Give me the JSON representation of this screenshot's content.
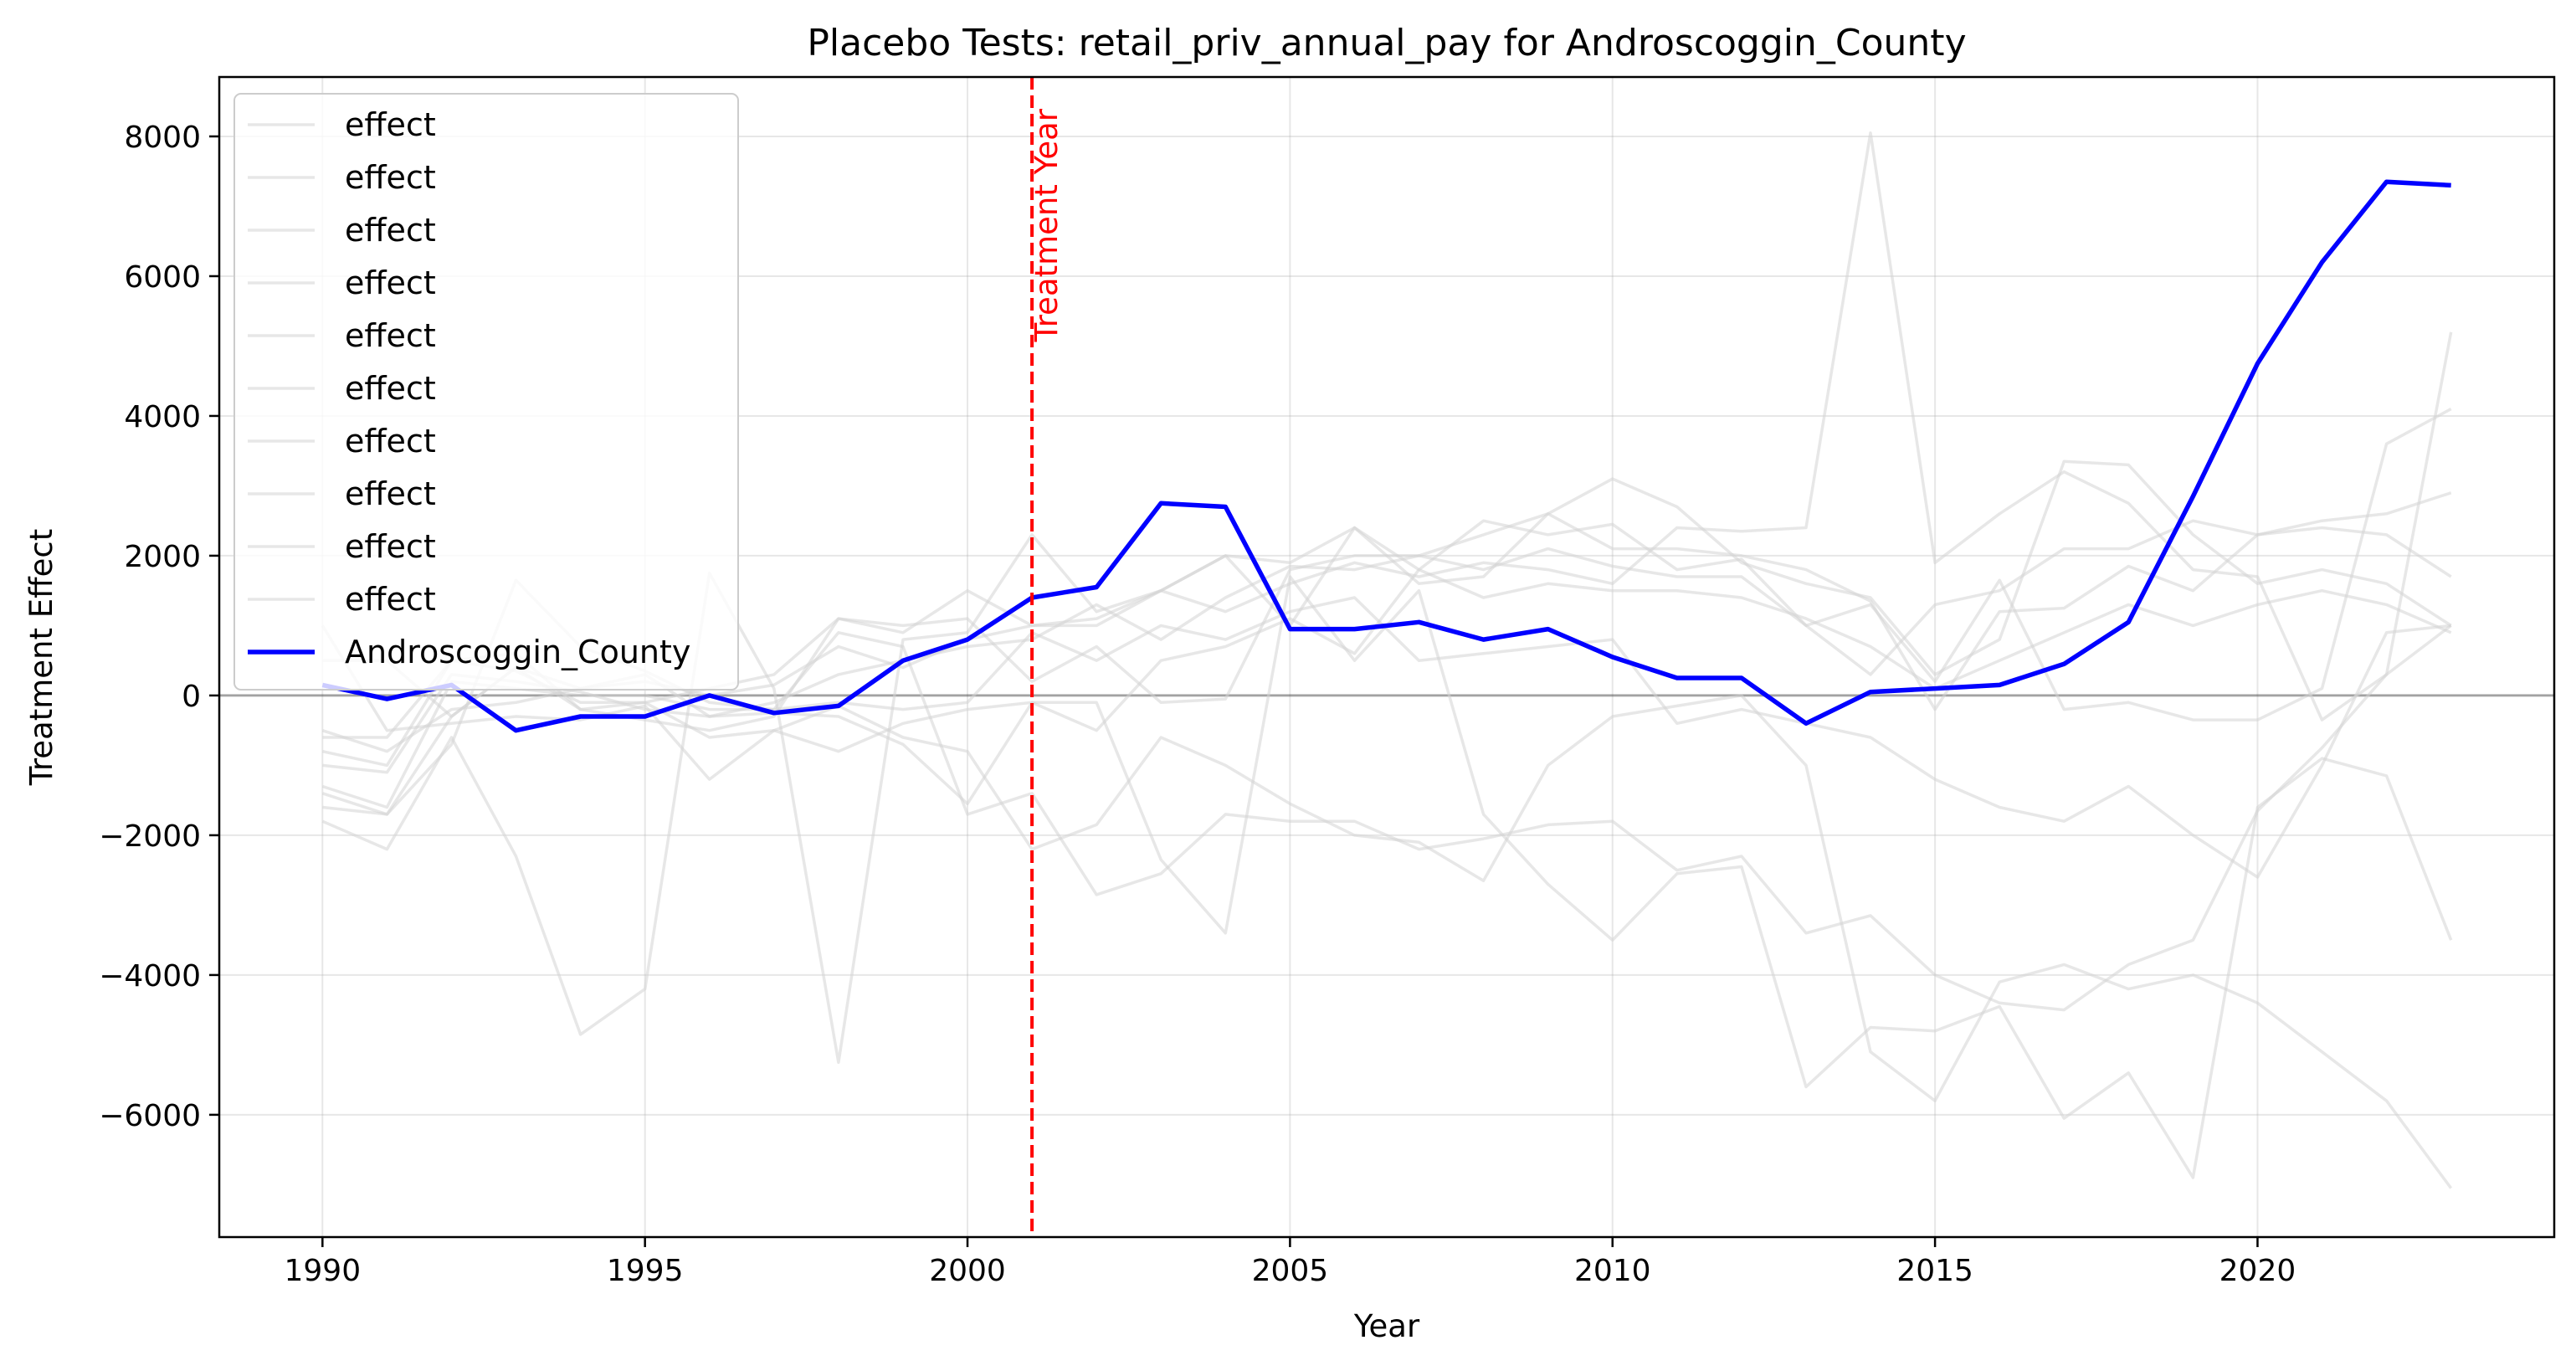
{
  "chart_data": {
    "type": "line",
    "title": "Placebo Tests: retail_priv_annual_pay for Androscoggin_County",
    "xlabel": "Year",
    "ylabel": "Treatment Effect",
    "xlim": [
      1988.4,
      2024.6
    ],
    "ylim": [
      -7750,
      8850
    ],
    "xticks": [
      1990,
      1995,
      2000,
      2005,
      2010,
      2015,
      2020
    ],
    "yticks": [
      -6000,
      -4000,
      -2000,
      0,
      2000,
      4000,
      6000,
      8000
    ],
    "ytick_labels": [
      "−6000",
      "−4000",
      "−2000",
      "0",
      "2000",
      "4000",
      "6000",
      "8000"
    ],
    "grid": true,
    "legend_position": "upper-left",
    "treatment_year": 2001,
    "treatment_label": "Treatment Year",
    "zero_line": 0,
    "x": [
      1990,
      1991,
      1992,
      1993,
      1994,
      1995,
      1996,
      1997,
      1998,
      1999,
      2000,
      2001,
      2002,
      2003,
      2004,
      2005,
      2006,
      2007,
      2008,
      2009,
      2010,
      2011,
      2012,
      2013,
      2014,
      2015,
      2016,
      2017,
      2018,
      2019,
      2020,
      2021,
      2022,
      2023
    ],
    "series": [
      {
        "name": "effect",
        "color": "#d3d3d3",
        "values": [
          -1800,
          -2200,
          -600,
          -2300,
          -4850,
          -4200,
          1750,
          100,
          -5250,
          800,
          900,
          2300,
          1200,
          1500,
          2000,
          1000,
          2400,
          1800,
          2500,
          2300,
          2450,
          1800,
          1950,
          1000,
          1300,
          200,
          1650,
          -200,
          -100,
          -350,
          -350,
          100,
          3600,
          4100
        ]
      },
      {
        "name": "effect",
        "color": "#d3d3d3",
        "values": [
          -1400,
          -1700,
          -700,
          1650,
          700,
          350,
          -100,
          -200,
          900,
          700,
          -1700,
          -1400,
          -2850,
          -2550,
          -1700,
          -1800,
          -1800,
          -2200,
          -2050,
          -1850,
          -1800,
          -2500,
          -2300,
          -3400,
          -3150,
          -4000,
          -4400,
          -4500,
          -3850,
          -3500,
          -1650,
          -750,
          300,
          1000
        ]
      },
      {
        "name": "effect",
        "color": "#d3d3d3",
        "values": [
          -600,
          -600,
          500,
          600,
          -200,
          -350,
          -500,
          -300,
          1100,
          1000,
          1100,
          200,
          700,
          -100,
          -50,
          1800,
          2000,
          2000,
          1800,
          2100,
          1850,
          1700,
          1700,
          1000,
          300,
          1300,
          1500,
          2100,
          2100,
          2500,
          2300,
          2400,
          2300,
          1700
        ]
      },
      {
        "name": "effect",
        "color": "#d3d3d3",
        "values": [
          -1000,
          -1100,
          300,
          200,
          50,
          -200,
          -300,
          -100,
          300,
          500,
          700,
          800,
          1300,
          800,
          1400,
          1850,
          1800,
          2000,
          2300,
          2600,
          2100,
          2100,
          2000,
          1800,
          1350,
          -200,
          1200,
          1250,
          1850,
          1500,
          2300,
          2500,
          2600,
          2900
        ]
      },
      {
        "name": "effect",
        "color": "#d3d3d3",
        "values": [
          1000,
          -500,
          -400,
          -300,
          -350,
          -150,
          -1200,
          -500,
          -150,
          -600,
          -800,
          -2200,
          -1850,
          -600,
          -1000,
          -1550,
          -2000,
          -2100,
          -2650,
          -1000,
          -300,
          -150,
          0,
          -1000,
          -5100,
          -5800,
          -4100,
          -3850,
          -4200,
          -4000,
          -4400,
          -5100,
          -5800,
          -7050
        ]
      },
      {
        "name": "effect",
        "color": "#d3d3d3",
        "values": [
          -800,
          -1000,
          500,
          350,
          -100,
          -100,
          -600,
          -500,
          -800,
          -400,
          -200,
          -100,
          -500,
          500,
          700,
          1100,
          600,
          1800,
          1400,
          1600,
          1500,
          1500,
          1400,
          1100,
          700,
          100,
          500,
          900,
          1300,
          1000,
          1300,
          1500,
          1300,
          900
        ]
      },
      {
        "name": "effect",
        "color": "#d3d3d3",
        "values": [
          -1600,
          -1700,
          -300,
          400,
          100,
          300,
          -300,
          -250,
          -300,
          -700,
          -1550,
          -100,
          -100,
          -2350,
          -3400,
          1700,
          500,
          1500,
          -1700,
          -2700,
          -3500,
          -2550,
          -2450,
          -5600,
          -4750,
          -4800,
          -4450,
          -6050,
          -5400,
          -6900,
          -1600,
          -900,
          -1150,
          -3500
        ]
      },
      {
        "name": "effect",
        "color": "#d3d3d3",
        "values": [
          -1300,
          -1600,
          200,
          100,
          0,
          0,
          -200,
          -200,
          -100,
          -200,
          -100,
          900,
          500,
          1000,
          800,
          1200,
          1400,
          500,
          600,
          700,
          800,
          -400,
          -200,
          -400,
          -600,
          -1200,
          -1600,
          -1800,
          -1300,
          -2000,
          -2600,
          -1000,
          900,
          1000
        ]
      },
      {
        "name": "effect",
        "color": "#d3d3d3",
        "values": [
          500,
          500,
          -300,
          400,
          -200,
          -100,
          100,
          300,
          1100,
          900,
          1500,
          1000,
          1000,
          1500,
          2000,
          1900,
          2400,
          1600,
          1700,
          2600,
          3100,
          2700,
          1900,
          1600,
          1400,
          300,
          800,
          3350,
          3300,
          2300,
          1600,
          1800,
          1600,
          1000
        ]
      },
      {
        "name": "effect",
        "color": "#d3d3d3",
        "values": [
          -500,
          -800,
          -200,
          -100,
          100,
          200,
          0,
          150,
          700,
          400,
          800,
          1000,
          1100,
          1500,
          1200,
          1600,
          1900,
          1700,
          1900,
          1800,
          1600,
          2400,
          2350,
          2400,
          8050,
          1900,
          2600,
          3200,
          2750,
          1800,
          1700,
          -350,
          300,
          5200
        ]
      },
      {
        "name": "Androscoggin_County",
        "color": "#0000ff",
        "values": [
          150,
          -50,
          150,
          -500,
          -300,
          -300,
          0,
          -250,
          -150,
          500,
          800,
          1400,
          1550,
          2750,
          2700,
          950,
          950,
          1050,
          800,
          950,
          550,
          250,
          250,
          -400,
          50,
          100,
          150,
          450,
          1050,
          2850,
          4750,
          6200,
          7350,
          7300
        ]
      }
    ]
  }
}
